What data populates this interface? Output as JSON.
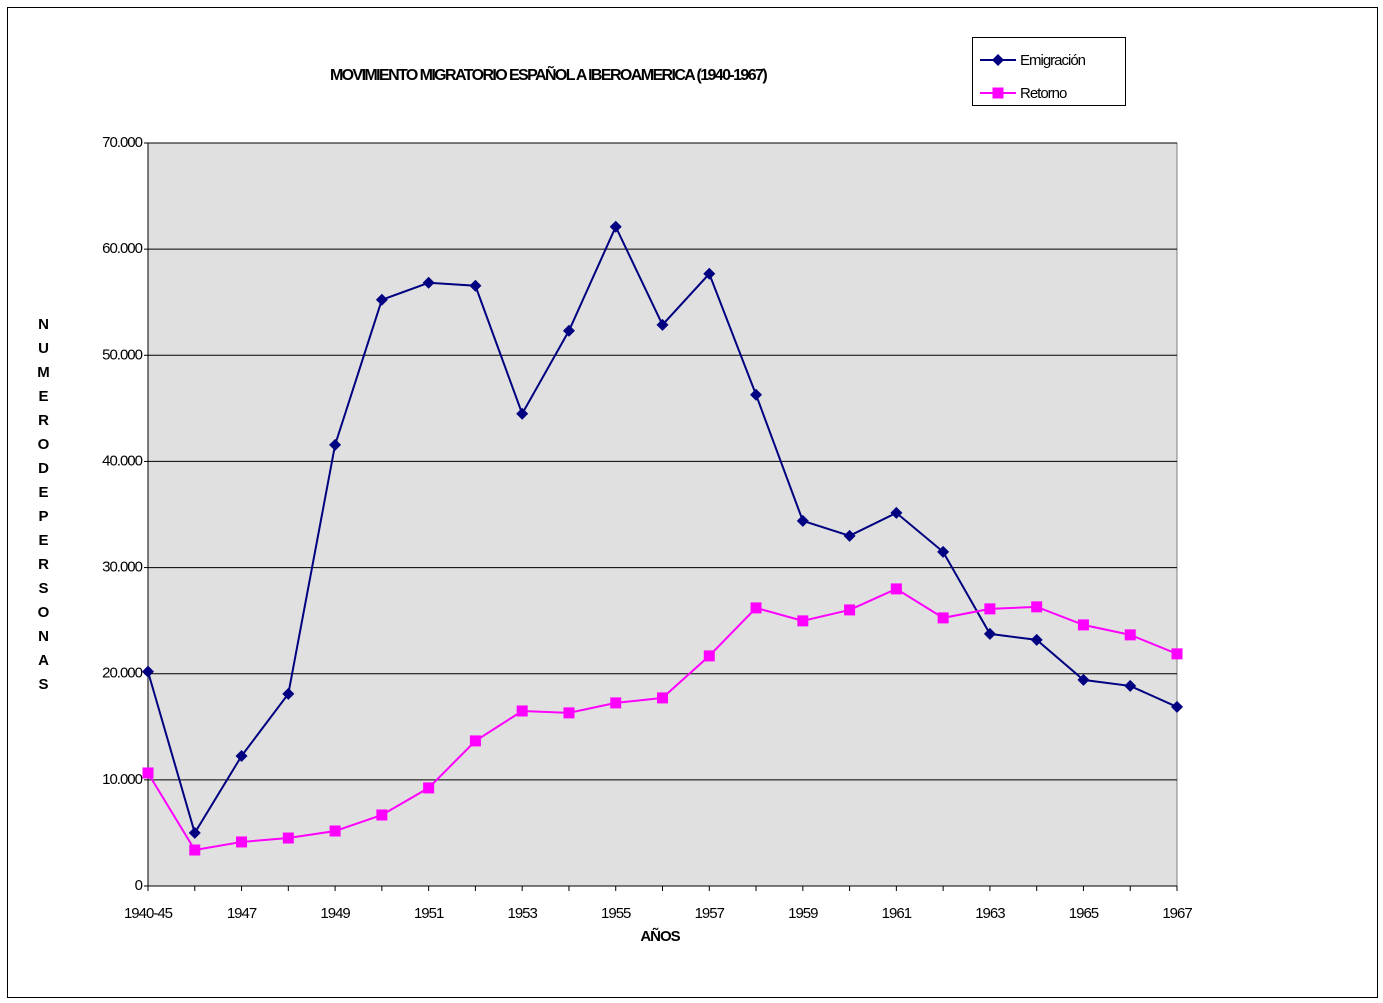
{
  "chart_data": {
    "type": "line",
    "title": "MOVIMIENTO MIGRATORIO ESPAÑOL A IBEROAMERICA (1940-1967)",
    "x_label": "AÑOS",
    "y_label": "NUMERODEPERSONAS",
    "categories": [
      "1940-45",
      null,
      "1947",
      null,
      "1949",
      null,
      "1951",
      null,
      "1953",
      null,
      "1955",
      null,
      "1957",
      null,
      "1959",
      null,
      "1961",
      null,
      "1963",
      null,
      "1965",
      null,
      "1967"
    ],
    "series": [
      {
        "name": "Emigración",
        "color": "#000080",
        "marker": "diamond",
        "values": [
          20200,
          5000,
          12250,
          18100,
          41560,
          55230,
          56830,
          56550,
          44490,
          52310,
          62110,
          52870,
          57680,
          46280,
          34400,
          32990,
          35150,
          31480,
          23750,
          23190,
          19420,
          18850,
          16870
        ]
      },
      {
        "name": "Retorno",
        "color": "#ff00ff",
        "marker": "square",
        "values": [
          10650,
          3390,
          4150,
          4520,
          5180,
          6690,
          9240,
          13670,
          16490,
          16310,
          17250,
          17720,
          21680,
          26200,
          24980,
          26010,
          27990,
          25260,
          26110,
          26300,
          24600,
          23660,
          21870
        ]
      }
    ],
    "ylim": [
      0,
      70000
    ],
    "yticks": [
      0,
      {
        "value": 10000,
        "label": "10.000"
      },
      {
        "value": 20000,
        "label": "20.000"
      },
      {
        "value": 30000,
        "label": "30.000"
      },
      {
        "value": 40000,
        "label": "40.000"
      },
      {
        "value": 50000,
        "label": "50.000"
      },
      {
        "value": 60000,
        "label": "60.000"
      },
      {
        "value": 70000,
        "label": "70.000"
      }
    ],
    "grid": true,
    "legend": "top-right",
    "plot_background": "#e0e0e0"
  }
}
